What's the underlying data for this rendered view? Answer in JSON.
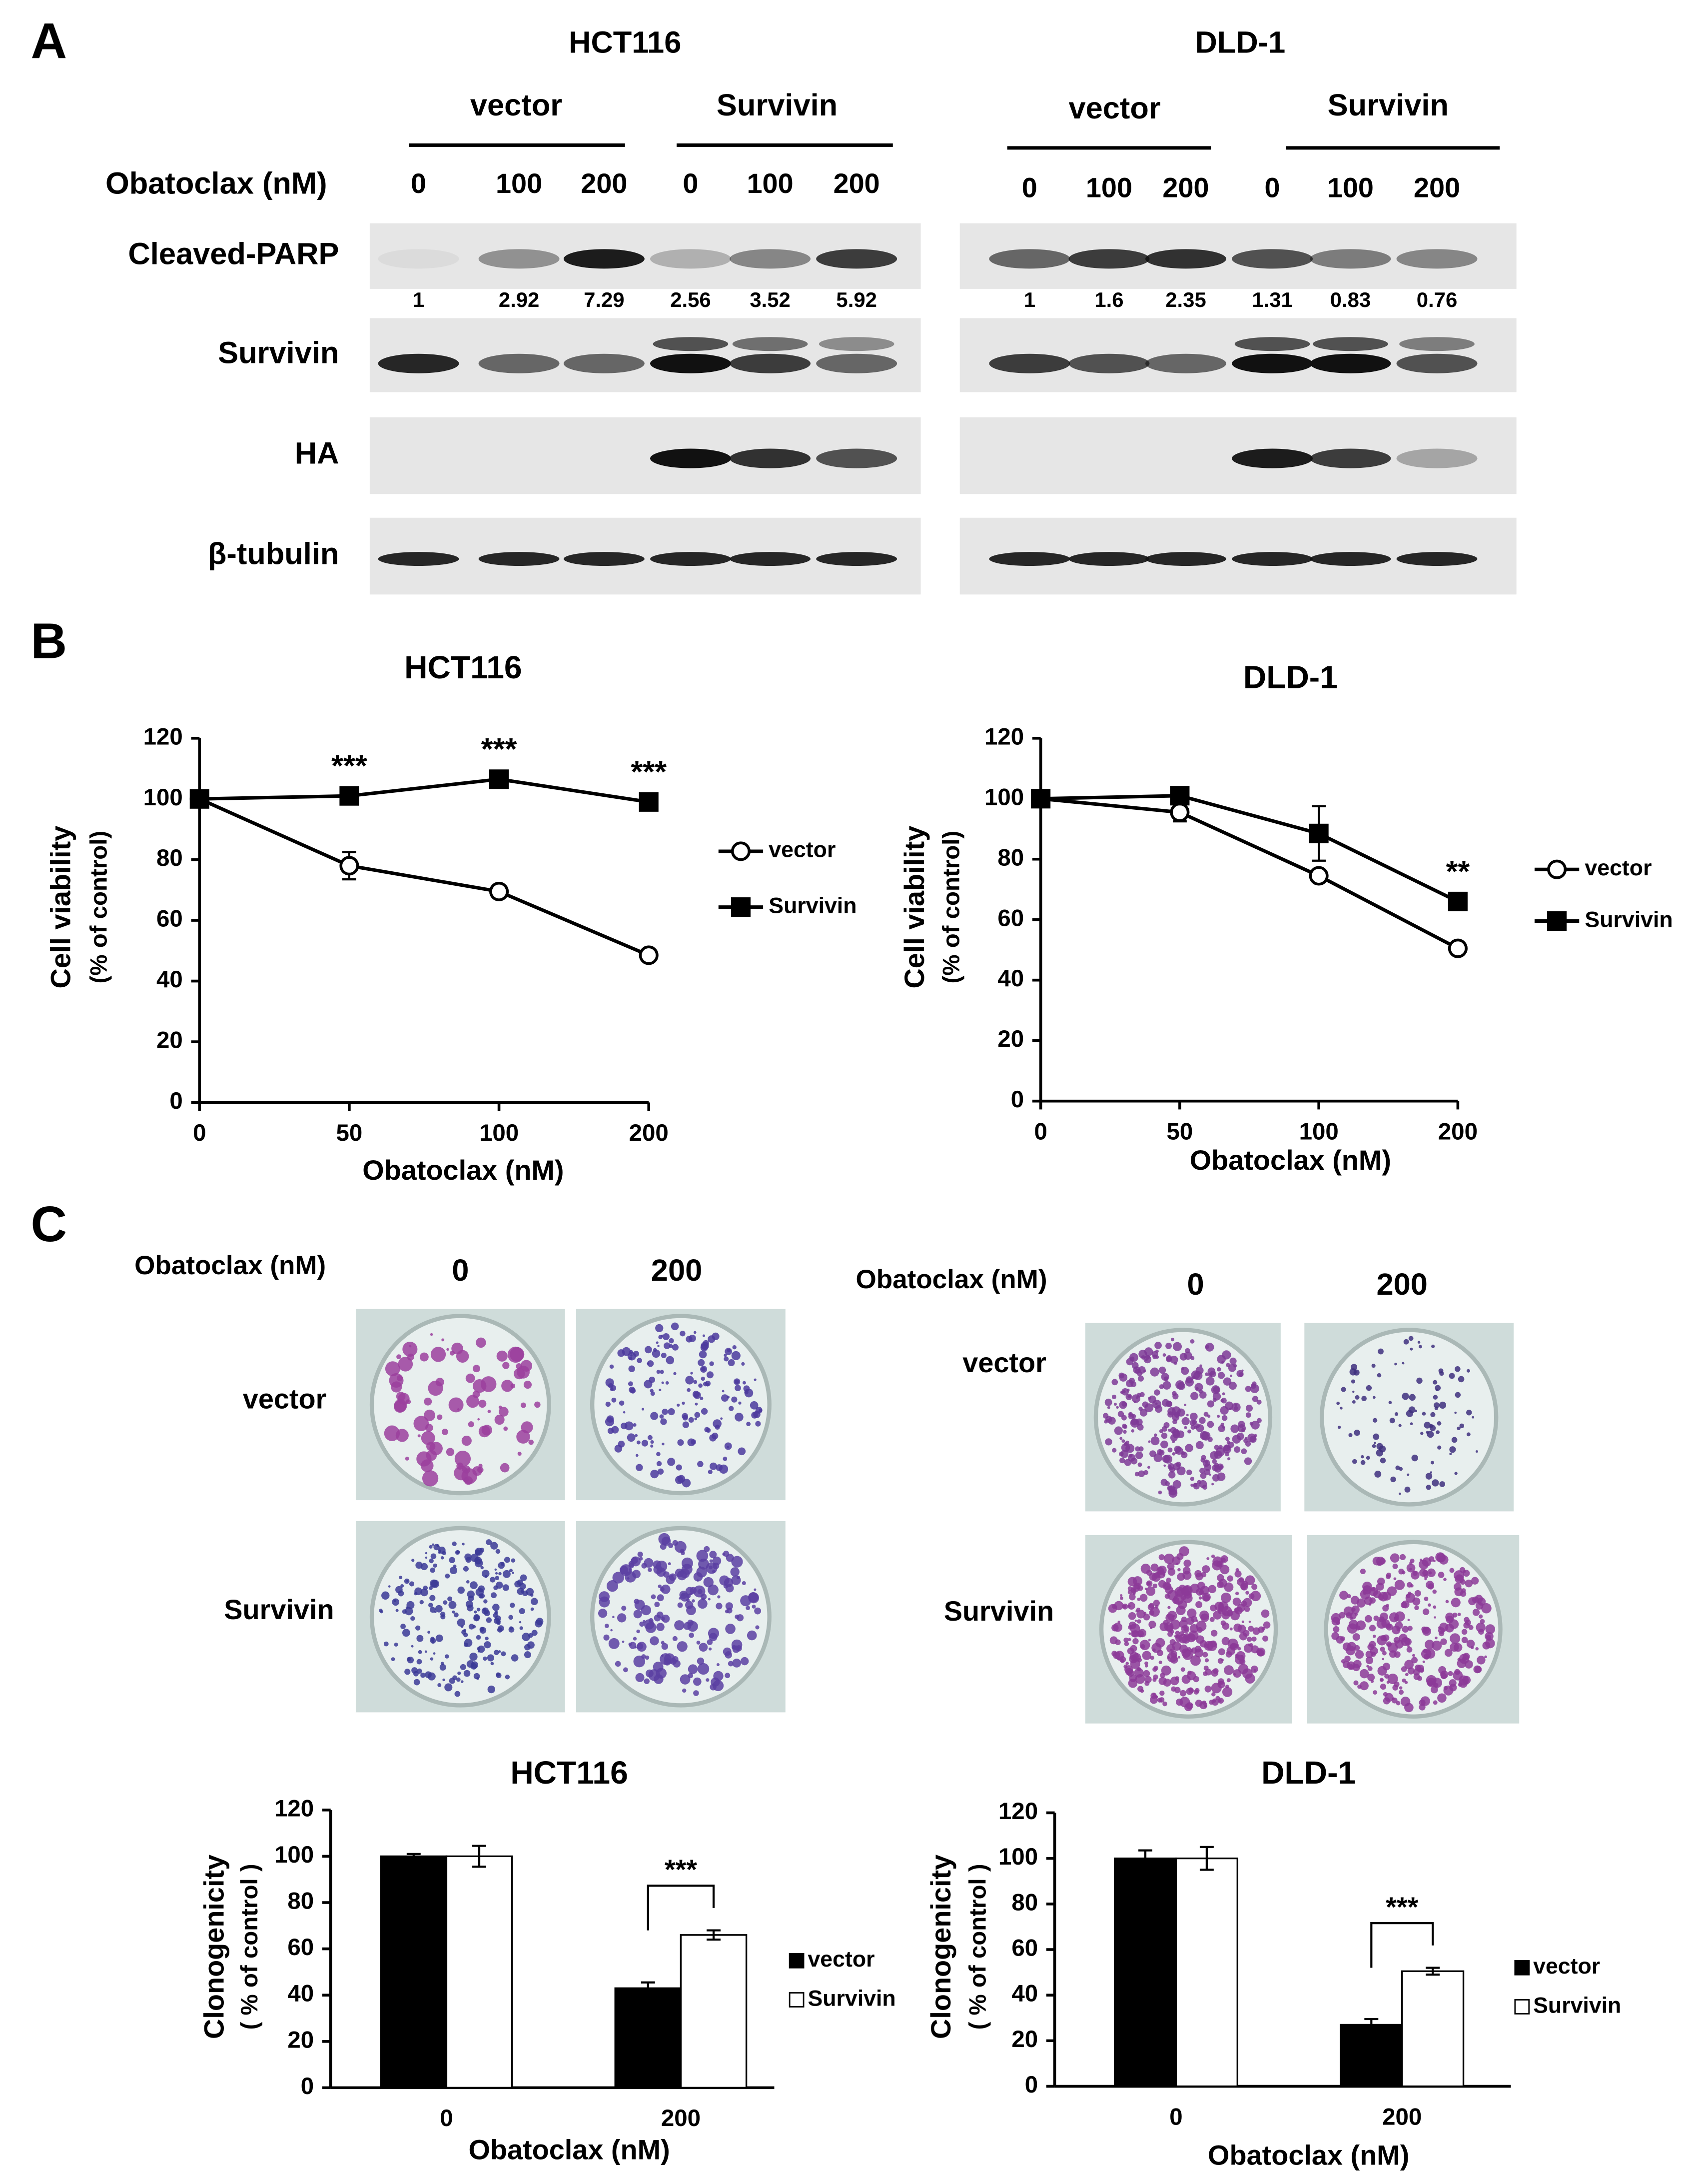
{
  "panel_labels": [
    "A",
    "B",
    "C"
  ],
  "blot_treatment_label": "Obatoclax (nM)",
  "blot_rows": [
    "Cleaved-PARP",
    "Survivin",
    "HA",
    "β-tubulin"
  ],
  "blots": [
    {
      "cell_line": "HCT116",
      "groups": [
        "vector",
        "Survivin"
      ],
      "doses": [
        0,
        100,
        200,
        0,
        100,
        200
      ],
      "parp_quantification": [
        1,
        2.92,
        7.29,
        2.56,
        3.52,
        5.92
      ]
    },
    {
      "cell_line": "DLD-1",
      "groups": [
        "vector",
        "Survivin"
      ],
      "doses": [
        0,
        100,
        200,
        0,
        100,
        200
      ],
      "parp_quantification": [
        1,
        1.6,
        2.35,
        1.31,
        0.83,
        0.76
      ]
    }
  ],
  "colonies": [
    {
      "treatment_label": "Obatoclax (nM)",
      "doses": [
        0,
        200
      ],
      "rows": [
        "vector",
        "Survivin"
      ]
    },
    {
      "treatment_label": "Obatoclax (nM)",
      "doses": [
        0,
        200
      ],
      "rows": [
        "vector",
        "Survivin"
      ]
    }
  ],
  "chart_data": [
    {
      "type": "line",
      "title": "HCT116",
      "x_label": "Obatoclax (nM)",
      "y_label": [
        "Cell viability",
        "(% of control)"
      ],
      "categories": [
        "0",
        "50",
        "100",
        "200"
      ],
      "series": [
        {
          "name": "vector",
          "color": "#000000",
          "marker": "o",
          "markerfacecolor": "#ffffff",
          "values": [
            100,
            78,
            69.5,
            48.5
          ],
          "errors": [
            null,
            4.5,
            null,
            null
          ]
        },
        {
          "name": "Survivin",
          "color": "#000000",
          "marker": "s",
          "markerfacecolor": "#000000",
          "values": [
            100,
            101,
            106.5,
            99
          ]
        }
      ],
      "significance": [
        null,
        "***",
        "***",
        "***"
      ],
      "ylim": [
        0,
        120
      ],
      "yticks": [
        0,
        20,
        40,
        60,
        80,
        100,
        120
      ]
    },
    {
      "type": "line",
      "title": "DLD-1",
      "x_label": "Obatoclax (nM)",
      "y_label": [
        "Cell viability",
        "(% of control)"
      ],
      "categories": [
        "0",
        "50",
        "100",
        "200"
      ],
      "series": [
        {
          "name": "vector",
          "color": "#000000",
          "marker": "o",
          "markerfacecolor": "#ffffff",
          "values": [
            100,
            95.5,
            74.5,
            50.5
          ],
          "errors": [
            null,
            3,
            null,
            null
          ]
        },
        {
          "name": "Survivin",
          "color": "#000000",
          "marker": "s",
          "markerfacecolor": "#000000",
          "values": [
            100,
            101,
            88.5,
            66
          ],
          "errors": [
            null,
            null,
            9,
            null
          ]
        }
      ],
      "significance": [
        null,
        null,
        null,
        "**"
      ],
      "ylim": [
        0,
        120
      ],
      "yticks": [
        0,
        20,
        40,
        60,
        80,
        100,
        120
      ]
    },
    {
      "type": "bar",
      "title": "HCT116",
      "x_label": "Obatoclax (nM)",
      "y_label": [
        "Clonogenicity",
        "( % of control )"
      ],
      "categories": [
        "0",
        "200"
      ],
      "edgecolor": "#000000",
      "series": [
        {
          "name": "vector",
          "color": "#000000",
          "values": [
            100,
            43
          ],
          "errors": [
            1,
            2.5
          ]
        },
        {
          "name": "Survivin",
          "color": "#ffffff",
          "values": [
            100,
            66
          ],
          "errors": [
            4.5,
            2
          ]
        }
      ],
      "significance": [
        null,
        "***"
      ],
      "ylim": [
        0,
        120
      ],
      "yticks": [
        0,
        20,
        40,
        60,
        80,
        100,
        120
      ]
    },
    {
      "type": "bar",
      "title": "DLD-1",
      "x_label": "Obatoclax (nM)",
      "y_label": [
        "Clonogenicity",
        "( % of control )"
      ],
      "categories": [
        "0",
        "200"
      ],
      "edgecolor": "#000000",
      "series": [
        {
          "name": "vector",
          "color": "#000000",
          "values": [
            100,
            27
          ],
          "errors": [
            3.5,
            2.5
          ]
        },
        {
          "name": "Survivin",
          "color": "#ffffff",
          "values": [
            100,
            50.5
          ],
          "errors": [
            5,
            1.5
          ]
        }
      ],
      "significance": [
        null,
        "***"
      ],
      "ylim": [
        0,
        120
      ],
      "yticks": [
        0,
        20,
        40,
        60,
        80,
        100,
        120
      ]
    }
  ]
}
